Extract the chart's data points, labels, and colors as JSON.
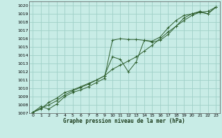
{
  "title": "Graphe pression niveau de la mer (hPa)",
  "bg_color": "#c8ece6",
  "grid_color": "#a0d0c8",
  "line_color": "#2d5e2d",
  "xlim": [
    -0.5,
    23.5
  ],
  "ylim": [
    1007,
    1020.5
  ],
  "xticks": [
    0,
    1,
    2,
    3,
    4,
    5,
    6,
    7,
    8,
    9,
    10,
    11,
    12,
    13,
    14,
    15,
    16,
    17,
    18,
    19,
    20,
    21,
    22,
    23
  ],
  "yticks": [
    1007,
    1008,
    1009,
    1010,
    1011,
    1012,
    1013,
    1014,
    1015,
    1016,
    1017,
    1018,
    1019,
    1020
  ],
  "series1_x": [
    0,
    1,
    2,
    3,
    4,
    5,
    6,
    7,
    8,
    9,
    10,
    11,
    12,
    13,
    14,
    15,
    16,
    17,
    18,
    19,
    20,
    21,
    22,
    23
  ],
  "series1_y": [
    1007.1,
    1007.8,
    1007.5,
    1008.1,
    1009.0,
    1009.5,
    1009.8,
    1010.2,
    1010.7,
    1011.2,
    1015.8,
    1016.0,
    1015.9,
    1015.9,
    1015.8,
    1015.7,
    1016.2,
    1017.3,
    1018.2,
    1018.8,
    1019.0,
    1019.3,
    1019.0,
    1019.8
  ],
  "series2_x": [
    0,
    1,
    2,
    3,
    4,
    5,
    6,
    7,
    8,
    9,
    10,
    11,
    12,
    13,
    14,
    15,
    16,
    17,
    18,
    19,
    20,
    21,
    22,
    23
  ],
  "series2_y": [
    1007.1,
    1007.5,
    1008.3,
    1008.8,
    1009.5,
    1009.8,
    1010.2,
    1010.6,
    1011.0,
    1011.5,
    1013.8,
    1013.5,
    1012.0,
    1013.2,
    1015.8,
    1015.6,
    1015.8,
    1016.5,
    1017.5,
    1018.5,
    1019.0,
    1019.2,
    1019.0,
    1019.8
  ],
  "series3_x": [
    0,
    1,
    2,
    3,
    4,
    5,
    6,
    7,
    8,
    9,
    10,
    11,
    12,
    13,
    14,
    15,
    16,
    17,
    18,
    19,
    20,
    21,
    22,
    23
  ],
  "series3_y": [
    1007.1,
    1007.6,
    1008.0,
    1008.5,
    1009.2,
    1009.7,
    1010.1,
    1010.5,
    1011.0,
    1011.5,
    1012.3,
    1012.8,
    1013.3,
    1013.8,
    1014.5,
    1015.2,
    1016.0,
    1016.8,
    1017.5,
    1018.2,
    1018.8,
    1019.2,
    1019.3,
    1019.8
  ]
}
